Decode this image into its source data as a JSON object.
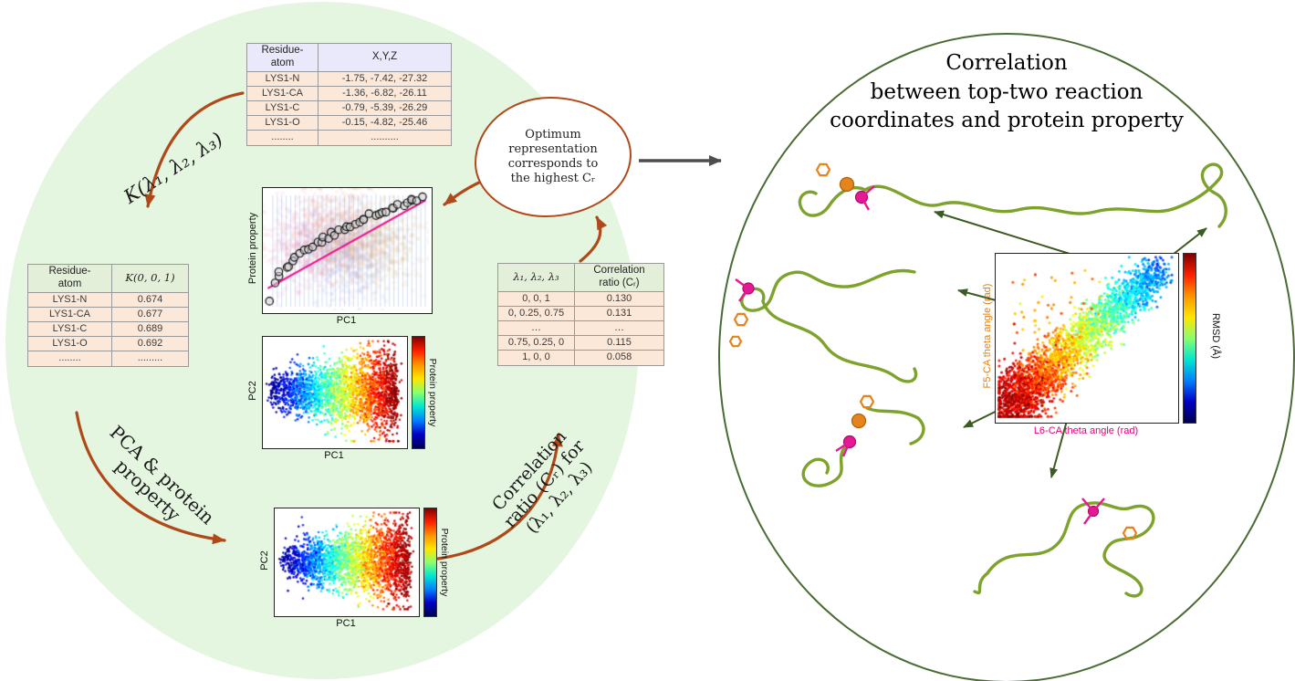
{
  "diagram": {
    "left": {
      "coord_table": {
        "col1": "Residue-\natom",
        "col2": "X,Y,Z",
        "rows": [
          [
            "LYS1-N",
            "-1.75, -7.42, -27.32"
          ],
          [
            "LYS1-CA",
            "-1.36, -6.82, -26.11"
          ],
          [
            "LYS1-C",
            "-0.79, -5.39, -26.29"
          ],
          [
            "LYS1-O",
            "-0.15, -4.82, -25.46"
          ],
          [
            "........",
            ".........."
          ]
        ]
      },
      "k_label": "K(λ₁, λ₂, λ₃)",
      "k_table": {
        "col1": "Residue-\natom",
        "col2": "K(0, 0, 1)",
        "rows": [
          [
            "LYS1-N",
            "0.674"
          ],
          [
            "LYS1-CA",
            "0.677"
          ],
          [
            "LYS1-C",
            "0.689"
          ],
          [
            "LYS1-O",
            "0.692"
          ],
          [
            "........",
            "........."
          ]
        ]
      },
      "pca_label": "PCA & protein\nproperty",
      "corr_label": "Correlation\nratio (Cᵣ) for\n(λ₁, λ₂, λ₃)",
      "bubble_text": "Optimum\nrepresentation\ncorresponds to\nthe highest Cᵣ",
      "corr_table": {
        "col1": "λ₁, λ₂, λ₃",
        "col2": "Correlation\nratio (Cᵣ)",
        "rows": [
          [
            "0, 0, 1",
            "0.130"
          ],
          [
            "0, 0.25, 0.75",
            "0.131"
          ],
          [
            "…",
            "…"
          ],
          [
            "0.75, 0.25, 0",
            "0.115"
          ],
          [
            "1, 0, 0",
            "0.058"
          ]
        ]
      },
      "plot_labels": {
        "pc1": "PC1",
        "pc2": "PC2",
        "property": "Protein property"
      }
    },
    "right": {
      "title": "Correlation\nbetween top-two reaction\ncoordinates and protein property",
      "plot": {
        "xlabel": "L6-CA theta angle (rad)",
        "ylabel": "F5-CA theta angle (rad)",
        "colorbar": "RMSD (Å)"
      }
    }
  },
  "colors": {
    "left_ellipse_bg": "#e4f5e0",
    "cycle_arrow_brown": "#b0491a",
    "right_circle_border": "#4a6b33",
    "structure_arrow_green": "#3c5b22",
    "protein_ribbon_green": "#7da32c",
    "residue_magenta": "#e61893",
    "residue_orange": "#e5831d",
    "xlabel_magenta": "#e6007e",
    "ylabel_orange": "#e08214",
    "table_body_bg": "#fce8d9",
    "coord_header_bg": "#e9e9fb",
    "green_header_bg": "#e3efd9"
  },
  "chart_data": [
    {
      "id": "pca-property-scatter",
      "type": "scatter",
      "xlabel": "PC1",
      "ylabel": "Protein property",
      "description": "Faded multicolor conformational scatter with dense vertical blue gridlines; black open circles trace a monotonically increasing saturating trend of protein property vs PC1; magenta linear fit line overlaid.",
      "overlays": [
        "vertical-gridlines",
        "magenta-fit-line",
        "black-circle-trend"
      ],
      "render": {
        "seed": 11,
        "n_background": 2600,
        "n_circles": 40
      }
    },
    {
      "id": "pc-space-scatter-optimal",
      "type": "scatter",
      "xlabel": "PC1",
      "ylabel": "PC2",
      "colorbar_label": "Protein property",
      "colormap": "jet",
      "description": "Projection onto PC1/PC2 colored by protein property: low (blue) at left PC1 tip, high (red) at right.",
      "render": {
        "seed": 7,
        "n_points": 2600
      }
    },
    {
      "id": "pc-space-scatter-input",
      "type": "scatter",
      "xlabel": "PC1",
      "ylabel": "PC2",
      "colorbar_label": "Protein property",
      "colormap": "jet",
      "description": "PCA projection colored by protein property (blue low at left to red high at right).",
      "render": {
        "seed": 23,
        "n_points": 2600
      }
    },
    {
      "id": "reaction-coordinate-correlation",
      "type": "scatter",
      "xlabel": "L6-CA theta angle (rad)",
      "ylabel": "F5-CA theta angle (rad)",
      "colorbar_label": "RMSD (Å)",
      "colormap": "jet",
      "trend": "Positive diagonal correlation; dense dark-red (low RMSD) cloud at lower-left thinning to cyan/blue (high RMSD) at upper-right; sparse orange outliers above the diagonal.",
      "render": {
        "seed": 41,
        "n_points": 2800,
        "n_outliers": 55
      }
    }
  ]
}
